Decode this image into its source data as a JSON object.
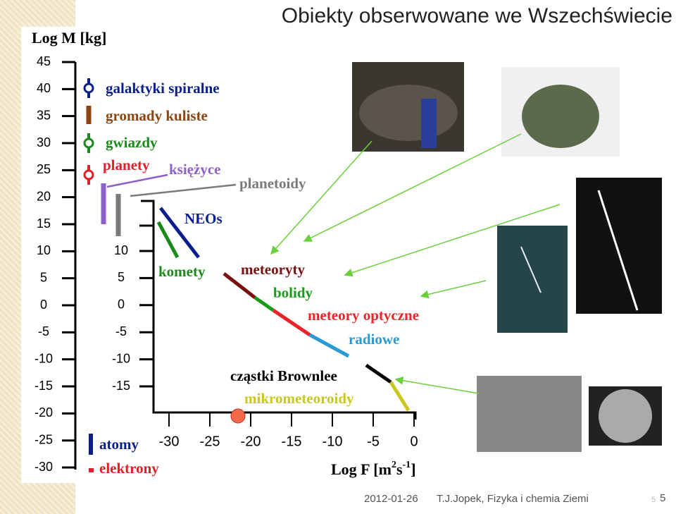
{
  "title": "Obiekty obserwowane we Wszechświecie",
  "axis_m": {
    "label": "Log M [kg]",
    "ticks": [
      45,
      40,
      35,
      30,
      25,
      20,
      15,
      10,
      5,
      0,
      -5,
      -10,
      -15,
      -20,
      -25,
      -30
    ]
  },
  "axis_m_inner": {
    "ticks": [
      10,
      5,
      0,
      -5,
      -10,
      -15
    ]
  },
  "axis_f": {
    "label_parts": [
      "Log F [m",
      "2",
      "s",
      "-1",
      "]"
    ],
    "ticks": [
      -30,
      -25,
      -20,
      -15,
      -10,
      -5,
      0
    ]
  },
  "objects": [
    {
      "label": "galaktyki spiralne",
      "color": "#0b1f8c"
    },
    {
      "label": "gromady kuliste",
      "color": "#8b4513"
    },
    {
      "label": "gwiazdy",
      "color": "#1a8a1a"
    },
    {
      "label": "planety",
      "color": "#e0202a"
    },
    {
      "label": "księżyce",
      "color": "#8e5fc9"
    },
    {
      "label": "planetoidy",
      "color": "#7a7a7a"
    },
    {
      "label": "NEOs",
      "color": "#0b1f8c"
    },
    {
      "label": "komety",
      "color": "#1a8a1a"
    },
    {
      "label": "meteoryty",
      "color": "#7a1010"
    },
    {
      "label": "bolidy",
      "color": "#1a9a1a"
    },
    {
      "label": "meteory optyczne",
      "color": "#e8262a"
    },
    {
      "label": "radiowe",
      "color": "#2a9ad6"
    },
    {
      "label": "cząstki Brownlee",
      "color": "#000000"
    },
    {
      "label": "mikrometeoroidy",
      "color": "#c8c820"
    },
    {
      "label": "atomy",
      "color": "#0b1f8c"
    },
    {
      "label": "elektrony",
      "color": "#e0202a"
    }
  ],
  "footer": {
    "date": "2012-01-26",
    "author": "T.J.Jopek, Fizyka i chemia Ziemi",
    "page_small": "5",
    "page": "5"
  }
}
